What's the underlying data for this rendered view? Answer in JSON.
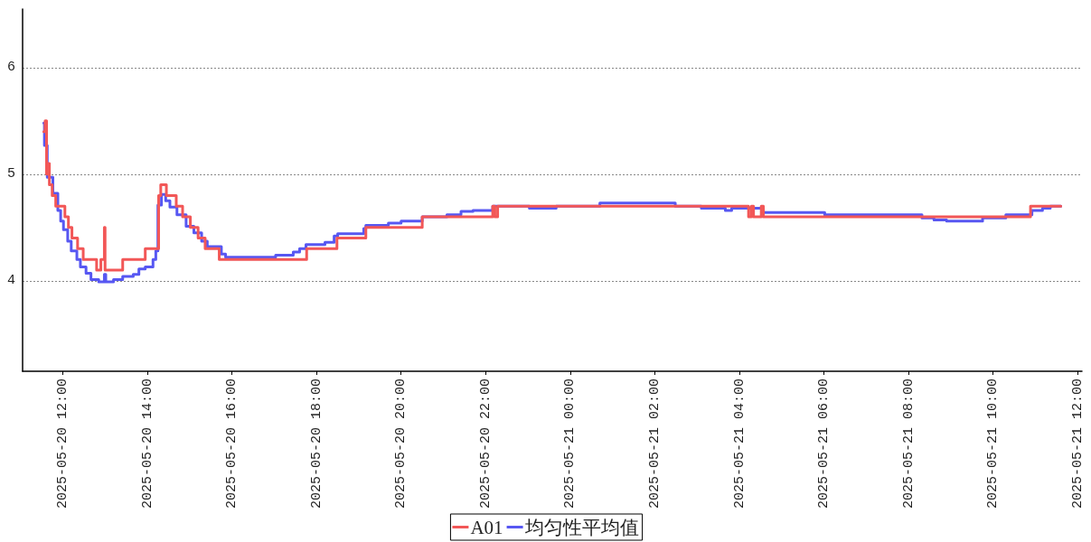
{
  "chart_data": {
    "type": "step",
    "series": [
      {
        "name": "A01",
        "color": "#f25757",
        "x": [
          "2025-05-20T11:33",
          "2025-05-20T11:35",
          "2025-05-20T11:37",
          "2025-05-20T11:38",
          "2025-05-20T11:41",
          "2025-05-20T11:45",
          "2025-05-20T11:50",
          "2025-05-20T12:03",
          "2025-05-20T12:08",
          "2025-05-20T12:13",
          "2025-05-20T12:21",
          "2025-05-20T12:29",
          "2025-05-20T12:48",
          "2025-05-20T12:54",
          "2025-05-20T12:59",
          "2025-05-20T13:00",
          "2025-05-20T13:25",
          "2025-05-20T13:57",
          "2025-05-20T14:16",
          "2025-05-20T14:19",
          "2025-05-20T14:27",
          "2025-05-20T14:41",
          "2025-05-20T14:50",
          "2025-05-20T15:01",
          "2025-05-20T15:12",
          "2025-05-20T15:22",
          "2025-05-20T15:42",
          "2025-05-20T17:46",
          "2025-05-20T18:29",
          "2025-05-20T19:10",
          "2025-05-20T20:30",
          "2025-05-20T22:10",
          "2025-05-20T22:13",
          "2025-05-20T22:17",
          "2025-05-21T04:13",
          "2025-05-21T04:17",
          "2025-05-21T04:20",
          "2025-05-21T04:31",
          "2025-05-21T04:34",
          "2025-05-21T10:53",
          "2025-05-21T11:36"
        ],
        "values": [
          5.4,
          5.5,
          5.0,
          5.1,
          4.9,
          4.8,
          4.7,
          4.6,
          4.5,
          4.4,
          4.3,
          4.2,
          4.1,
          4.2,
          4.5,
          4.1,
          4.2,
          4.3,
          4.8,
          4.9,
          4.8,
          4.7,
          4.6,
          4.5,
          4.4,
          4.3,
          4.2,
          4.3,
          4.4,
          4.5,
          4.6,
          4.7,
          4.6,
          4.7,
          4.6,
          4.7,
          4.6,
          4.7,
          4.6,
          4.7,
          4.7
        ]
      },
      {
        "name": "均匀性平均值",
        "color": "#5757f2",
        "x": [
          "2025-05-20T11:33",
          "2025-05-20T11:34",
          "2025-05-20T11:38",
          "2025-05-20T11:46",
          "2025-05-20T11:53",
          "2025-05-20T11:57",
          "2025-05-20T12:01",
          "2025-05-20T12:07",
          "2025-05-20T12:12",
          "2025-05-20T12:20",
          "2025-05-20T12:25",
          "2025-05-20T12:33",
          "2025-05-20T12:40",
          "2025-05-20T12:51",
          "2025-05-20T12:59",
          "2025-05-20T13:01",
          "2025-05-20T13:12",
          "2025-05-20T13:25",
          "2025-05-20T13:40",
          "2025-05-20T13:48",
          "2025-05-20T13:57",
          "2025-05-20T14:08",
          "2025-05-20T14:12",
          "2025-05-20T14:15",
          "2025-05-20T14:20",
          "2025-05-20T14:26",
          "2025-05-20T14:32",
          "2025-05-20T14:42",
          "2025-05-20T14:55",
          "2025-05-20T15:06",
          "2025-05-20T15:17",
          "2025-05-20T15:25",
          "2025-05-20T15:45",
          "2025-05-20T15:51",
          "2025-05-20T17:02",
          "2025-05-20T17:27",
          "2025-05-20T17:36",
          "2025-05-20T17:45",
          "2025-05-20T18:12",
          "2025-05-20T18:25",
          "2025-05-20T18:30",
          "2025-05-20T19:07",
          "2025-05-20T19:10",
          "2025-05-20T19:42",
          "2025-05-20T20:00",
          "2025-05-20T20:30",
          "2025-05-20T21:05",
          "2025-05-20T21:25",
          "2025-05-20T21:42",
          "2025-05-20T22:10",
          "2025-05-20T23:02",
          "2025-05-20T23:40",
          "2025-05-21T00:42",
          "2025-05-21T02:29",
          "2025-05-21T03:06",
          "2025-05-21T03:40",
          "2025-05-21T03:49",
          "2025-05-21T04:34",
          "2025-05-21T06:01",
          "2025-05-21T08:19",
          "2025-05-21T08:36",
          "2025-05-21T08:54",
          "2025-05-21T09:45",
          "2025-05-21T10:18",
          "2025-05-21T10:55",
          "2025-05-21T11:10",
          "2025-05-21T11:21",
          "2025-05-21T11:36"
        ],
        "values": [
          5.48,
          5.27,
          4.97,
          4.82,
          4.66,
          4.56,
          4.48,
          4.37,
          4.28,
          4.2,
          4.13,
          4.07,
          4.01,
          3.99,
          4.06,
          3.99,
          4.01,
          4.04,
          4.06,
          4.11,
          4.13,
          4.2,
          4.28,
          4.71,
          4.81,
          4.75,
          4.69,
          4.62,
          4.51,
          4.45,
          4.37,
          4.32,
          4.25,
          4.22,
          4.24,
          4.27,
          4.3,
          4.34,
          4.36,
          4.42,
          4.44,
          4.49,
          4.52,
          4.54,
          4.56,
          4.6,
          4.62,
          4.65,
          4.66,
          4.7,
          4.68,
          4.7,
          4.73,
          4.7,
          4.68,
          4.66,
          4.68,
          4.64,
          4.62,
          4.59,
          4.57,
          4.56,
          4.59,
          4.62,
          4.66,
          4.68,
          4.7,
          4.7
        ]
      }
    ],
    "xlim": [
      "2025-05-20T11:03",
      "2025-05-21T12:06"
    ],
    "xticks": [
      {
        "value": "2025-05-20T12:00",
        "label": "2025-05-20 12:00"
      },
      {
        "value": "2025-05-20T14:00",
        "label": "2025-05-20 14:00"
      },
      {
        "value": "2025-05-20T16:00",
        "label": "2025-05-20 16:00"
      },
      {
        "value": "2025-05-20T18:00",
        "label": "2025-05-20 18:00"
      },
      {
        "value": "2025-05-20T20:00",
        "label": "2025-05-20 20:00"
      },
      {
        "value": "2025-05-20T22:00",
        "label": "2025-05-20 22:00"
      },
      {
        "value": "2025-05-21T00:00",
        "label": "2025-05-21 00:00"
      },
      {
        "value": "2025-05-21T02:00",
        "label": "2025-05-21 02:00"
      },
      {
        "value": "2025-05-21T04:00",
        "label": "2025-05-21 04:00"
      },
      {
        "value": "2025-05-21T06:00",
        "label": "2025-05-21 06:00"
      },
      {
        "value": "2025-05-21T08:00",
        "label": "2025-05-21 08:00"
      },
      {
        "value": "2025-05-21T10:00",
        "label": "2025-05-21 10:00"
      },
      {
        "value": "2025-05-21T12:00",
        "label": "2025-05-21 12:00"
      }
    ],
    "ylim": [
      3.15,
      6.55
    ],
    "yticks": [
      4,
      5,
      6
    ],
    "grid": "y",
    "legend": "bottom",
    "marker": "none",
    "line_style": "solid"
  }
}
